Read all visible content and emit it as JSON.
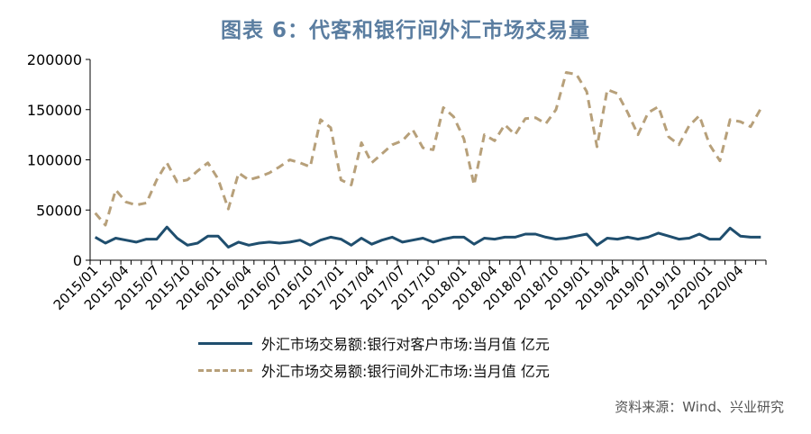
{
  "title": "图表 6：代客和银行间外汇市场交易量",
  "source": "资料来源：Wind、兴业研究",
  "chart_data": {
    "type": "line",
    "title": "图表 6：代客和银行间外汇市场交易量",
    "xlabel": "",
    "ylabel": "",
    "ylim": [
      0,
      200000
    ],
    "yticks": [
      0,
      50000,
      100000,
      150000,
      200000
    ],
    "ytick_labels": [
      "0",
      "50000",
      "100000",
      "150000",
      "200000"
    ],
    "x_tick_labels": [
      "2015/01",
      "2015/04",
      "2015/07",
      "2015/10",
      "2016/01",
      "2016/04",
      "2016/07",
      "2016/10",
      "2017/01",
      "2017/04",
      "2017/07",
      "2017/10",
      "2018/01",
      "2018/04",
      "2018/07",
      "2018/10",
      "2019/01",
      "2019/04",
      "2019/07",
      "2019/10",
      "2020/01",
      "2020/04"
    ],
    "x": [
      "2015/01",
      "2015/02",
      "2015/03",
      "2015/04",
      "2015/05",
      "2015/06",
      "2015/07",
      "2015/08",
      "2015/09",
      "2015/10",
      "2015/11",
      "2015/12",
      "2016/01",
      "2016/02",
      "2016/03",
      "2016/04",
      "2016/05",
      "2016/06",
      "2016/07",
      "2016/08",
      "2016/09",
      "2016/10",
      "2016/11",
      "2016/12",
      "2017/01",
      "2017/02",
      "2017/03",
      "2017/04",
      "2017/05",
      "2017/06",
      "2017/07",
      "2017/08",
      "2017/09",
      "2017/10",
      "2017/11",
      "2017/12",
      "2018/01",
      "2018/02",
      "2018/03",
      "2018/04",
      "2018/05",
      "2018/06",
      "2018/07",
      "2018/08",
      "2018/09",
      "2018/10",
      "2018/11",
      "2018/12",
      "2019/01",
      "2019/02",
      "2019/03",
      "2019/04",
      "2019/05",
      "2019/06",
      "2019/07",
      "2019/08",
      "2019/09",
      "2019/10",
      "2019/11",
      "2019/12",
      "2020/01",
      "2020/02",
      "2020/03",
      "2020/04",
      "2020/05",
      "2020/06"
    ],
    "grid": false,
    "legend_position": "bottom",
    "series": [
      {
        "name": "外汇市场交易额:银行对客户市场:当月值 亿元",
        "color": "#1f4e6e",
        "style": "solid",
        "values": [
          23000,
          17000,
          22000,
          20000,
          18000,
          21000,
          21000,
          33000,
          22000,
          15000,
          17000,
          24000,
          24000,
          13000,
          18000,
          15000,
          17000,
          18000,
          17000,
          18000,
          20000,
          15000,
          20000,
          23000,
          21000,
          15000,
          22000,
          16000,
          20000,
          23000,
          18000,
          20000,
          22000,
          18000,
          21000,
          23000,
          23000,
          16000,
          22000,
          21000,
          23000,
          23000,
          26000,
          26000,
          23000,
          21000,
          22000,
          24000,
          26000,
          15000,
          22000,
          21000,
          23000,
          21000,
          23000,
          27000,
          24000,
          21000,
          22000,
          26000,
          21000,
          21000,
          32000,
          24000,
          23000,
          23000
        ]
      },
      {
        "name": "外汇市场交易额:银行间外汇市场:当月值 亿元",
        "color": "#b7a07a",
        "style": "dashed",
        "values": [
          47000,
          35000,
          70000,
          58000,
          55000,
          57000,
          80000,
          97000,
          78000,
          80000,
          89000,
          97000,
          81000,
          51000,
          87000,
          80000,
          83000,
          87000,
          93000,
          100000,
          97000,
          93000,
          140000,
          132000,
          80000,
          75000,
          117000,
          97000,
          106000,
          115000,
          119000,
          130000,
          112000,
          110000,
          152000,
          143000,
          121000,
          75000,
          125000,
          119000,
          135000,
          125000,
          141000,
          142000,
          136000,
          150000,
          187000,
          185000,
          168000,
          113000,
          170000,
          166000,
          147000,
          125000,
          147000,
          153000,
          123000,
          115000,
          134000,
          144000,
          115000,
          99000,
          140000,
          138000,
          133000,
          151000
        ]
      }
    ]
  }
}
